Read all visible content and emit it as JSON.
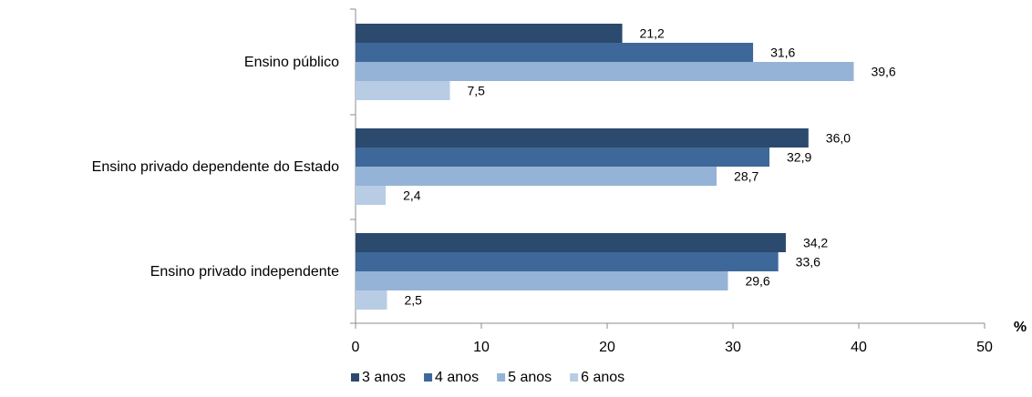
{
  "chart_data": {
    "type": "bar",
    "orientation": "horizontal",
    "categories": [
      "Ensino público",
      "Ensino privado dependente do Estado",
      "Ensino privado independente"
    ],
    "series": [
      {
        "name": "3 anos",
        "color": "#2B4A6E",
        "values": [
          21.2,
          36.0,
          34.2
        ],
        "labels": [
          "21,2",
          "36,0",
          "34,2"
        ]
      },
      {
        "name": "4 anos",
        "color": "#3E6899",
        "values": [
          31.6,
          32.9,
          33.6
        ],
        "labels": [
          "31,6",
          "32,9",
          "33,6"
        ]
      },
      {
        "name": "5 anos",
        "color": "#95B3D7",
        "values": [
          39.6,
          28.7,
          29.6
        ],
        "labels": [
          "39,6",
          "28,7",
          "29,6"
        ]
      },
      {
        "name": "6 anos",
        "color": "#B8CCE4",
        "values": [
          7.5,
          2.4,
          2.5
        ],
        "labels": [
          "7,5",
          "2,4",
          "2,5"
        ]
      }
    ],
    "xlim": [
      0,
      50
    ],
    "xticks": [
      0,
      10,
      20,
      30,
      40,
      50
    ],
    "xlabel": "%",
    "grid": false,
    "legend": "bottom-center"
  }
}
